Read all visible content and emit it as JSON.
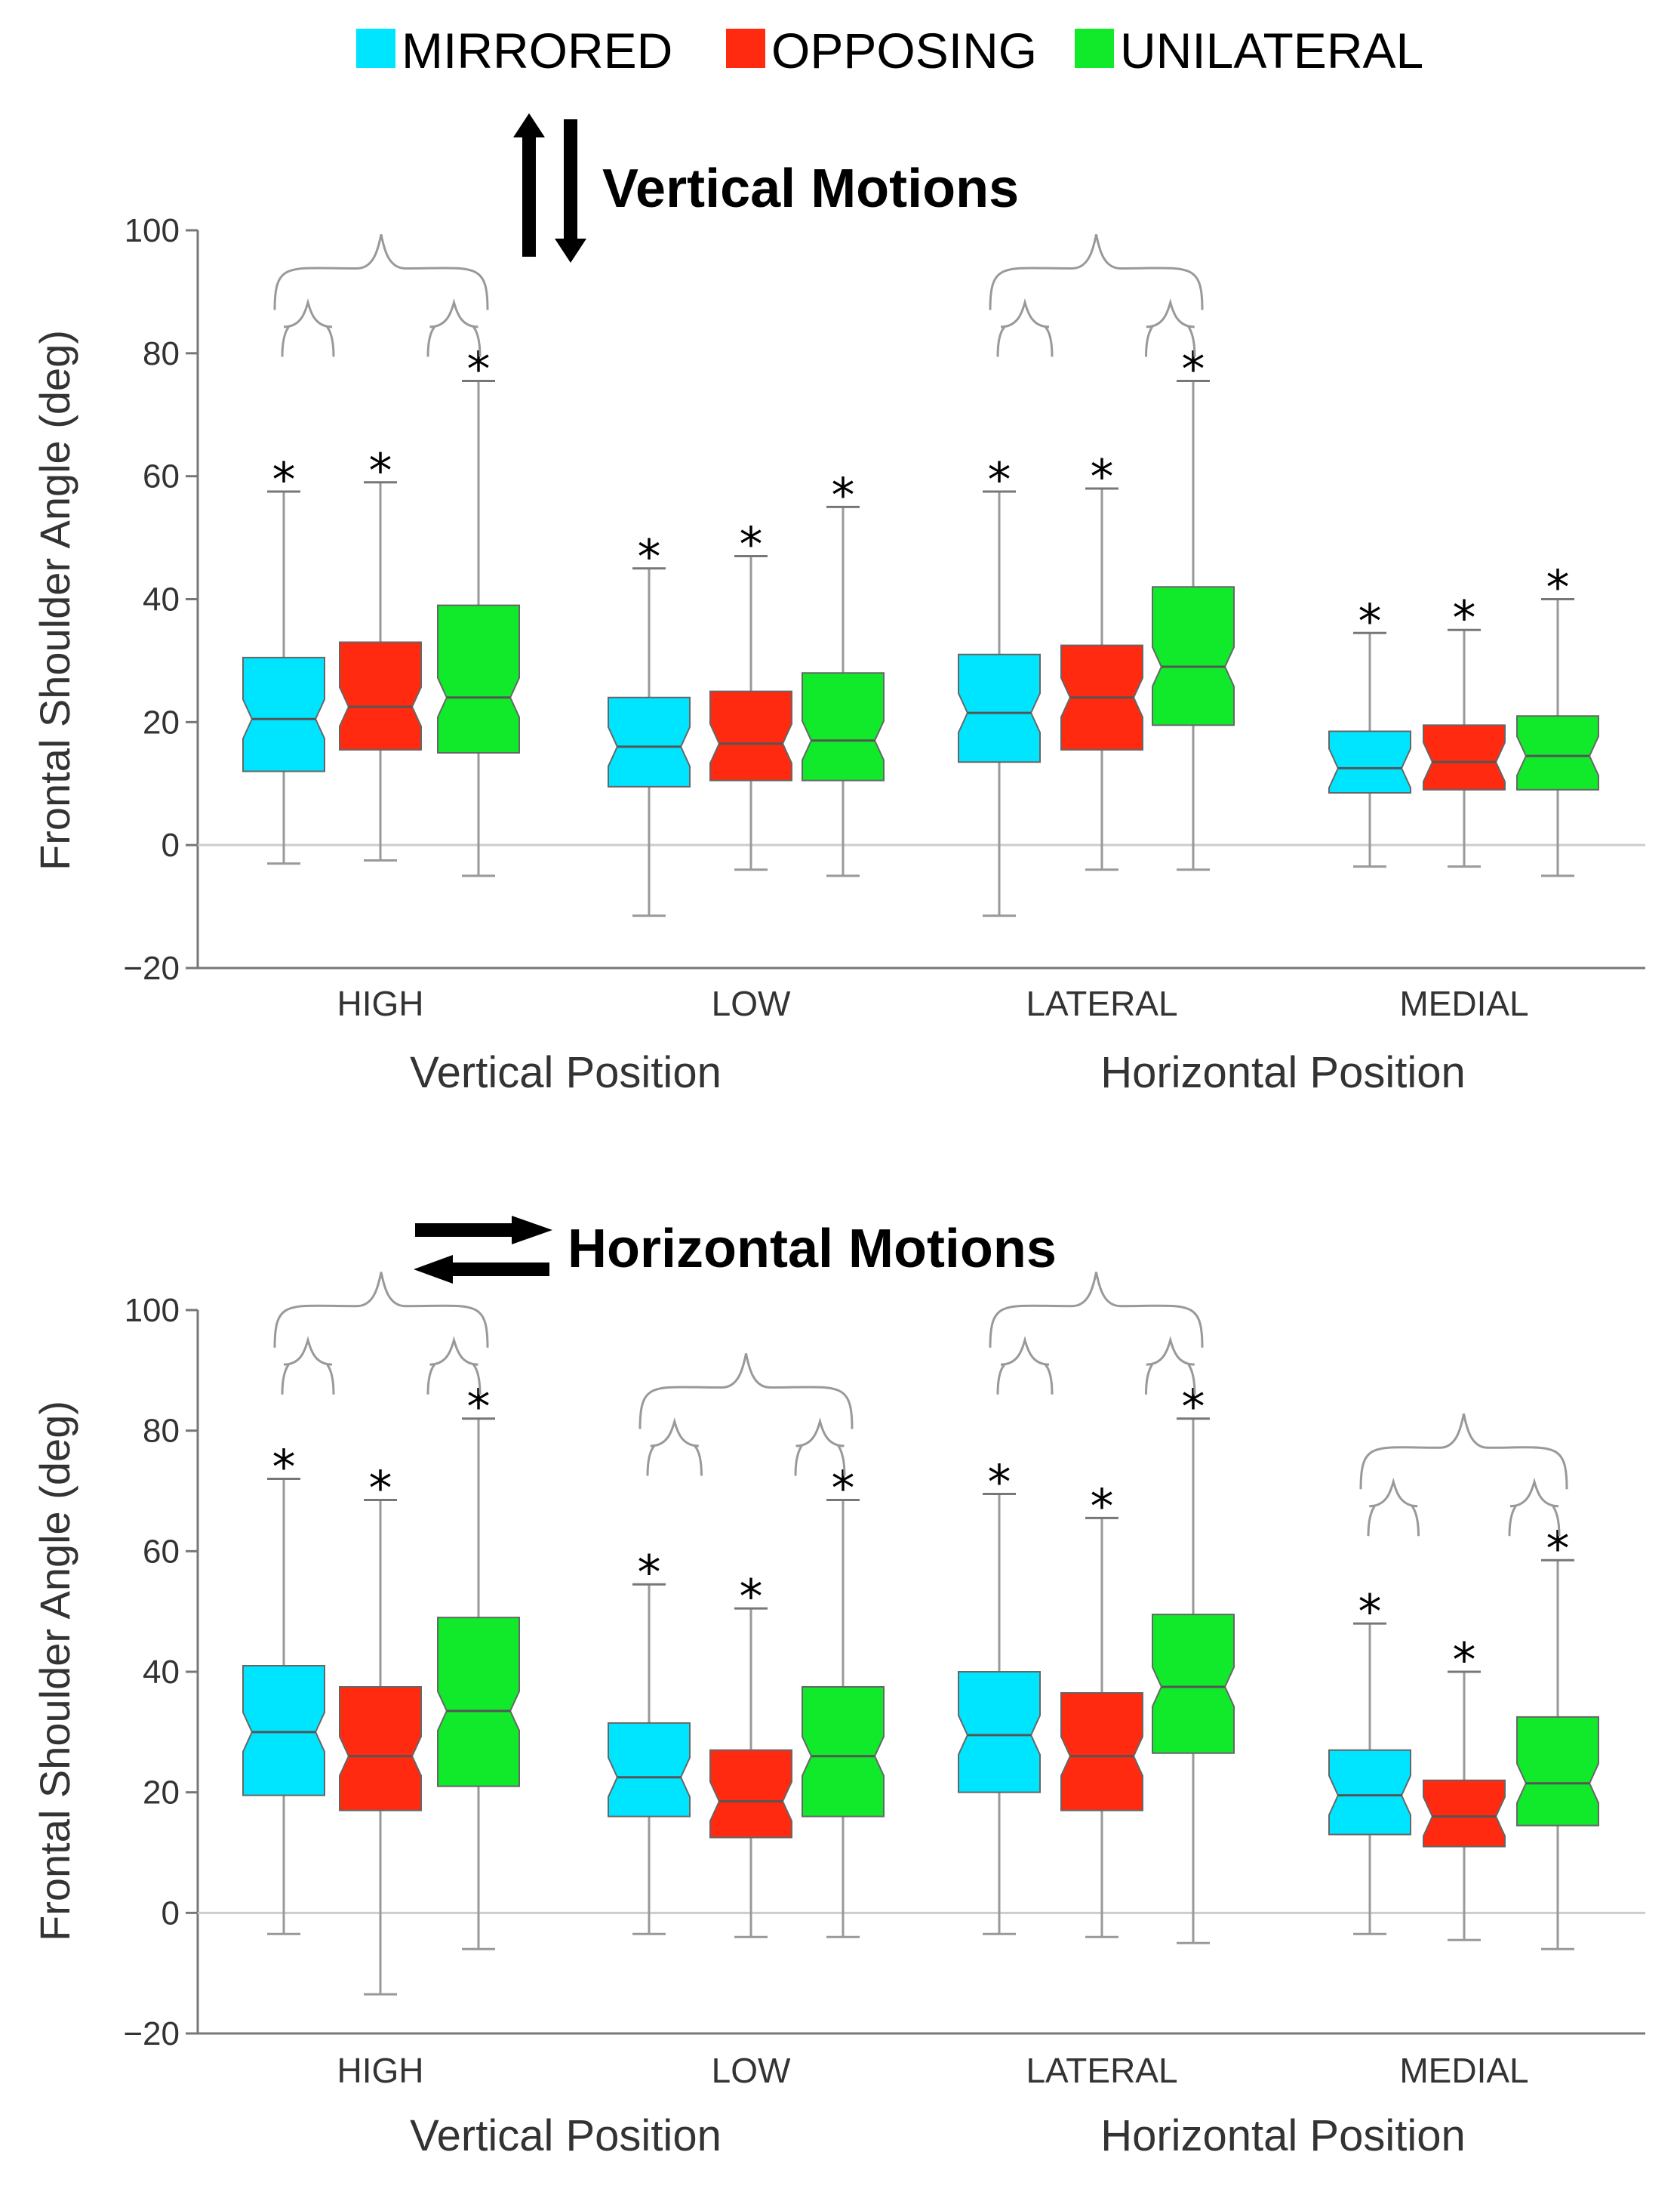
{
  "legend": [
    {
      "label": "MIRRORED",
      "color": "#00e5ff"
    },
    {
      "label": "OPPOSING",
      "color": "#ff2a10"
    },
    {
      "label": "UNILATERAL",
      "color": "#10ea2a"
    }
  ],
  "chart_data": [
    {
      "type": "boxplot",
      "title": "Vertical Motions",
      "ylabel": "Frontal Shoulder Angle (deg)",
      "ylim": [
        -20,
        100
      ],
      "yticks": [
        "100",
        "80",
        "60",
        "40",
        "20",
        "0",
        "−20"
      ],
      "categories": [
        "HIGH",
        "LOW",
        "LATERAL",
        "MEDIAL"
      ],
      "groups": [
        "Vertical Position",
        "Horizontal Position"
      ],
      "star_label": "*",
      "series": [
        {
          "name": "MIRRORED",
          "boxes": [
            {
              "min": -3,
              "q1": 12,
              "median": 20.5,
              "q3": 30.5,
              "max": 57.5
            },
            {
              "min": -11.5,
              "q1": 9.5,
              "median": 16,
              "q3": 24,
              "max": 45
            },
            {
              "min": -11.5,
              "q1": 13.5,
              "median": 21.5,
              "q3": 31,
              "max": 57.5
            },
            {
              "min": -3.5,
              "q1": 8.5,
              "median": 12.5,
              "q3": 18.5,
              "max": 34.5
            }
          ]
        },
        {
          "name": "OPPOSING",
          "boxes": [
            {
              "min": -2.5,
              "q1": 15.5,
              "median": 22.5,
              "q3": 33,
              "max": 59
            },
            {
              "min": -4,
              "q1": 10.5,
              "median": 16.5,
              "q3": 25,
              "max": 47
            },
            {
              "min": -4,
              "q1": 15.5,
              "median": 24,
              "q3": 32.5,
              "max": 58
            },
            {
              "min": -3.5,
              "q1": 9,
              "median": 13.5,
              "q3": 19.5,
              "max": 35
            }
          ]
        },
        {
          "name": "UNILATERAL",
          "boxes": [
            {
              "min": -5,
              "q1": 15,
              "median": 24,
              "q3": 39,
              "max": 75.5
            },
            {
              "min": -5,
              "q1": 10.5,
              "median": 17,
              "q3": 28,
              "max": 55
            },
            {
              "min": -4,
              "q1": 19.5,
              "median": 29,
              "q3": 42,
              "max": 75.5
            },
            {
              "min": -5,
              "q1": 9,
              "median": 14.5,
              "q3": 21,
              "max": 40
            }
          ]
        }
      ],
      "brackets": [
        0,
        2
      ]
    },
    {
      "type": "boxplot",
      "title": "Horizontal Motions",
      "ylabel": "Frontal Shoulder Angle (deg)",
      "ylim": [
        -20,
        100
      ],
      "yticks": [
        "100",
        "80",
        "60",
        "40",
        "20",
        "0",
        "−20"
      ],
      "categories": [
        "HIGH",
        "LOW",
        "LATERAL",
        "MEDIAL"
      ],
      "groups": [
        "Vertical Position",
        "Horizontal Position"
      ],
      "star_label": "*",
      "series": [
        {
          "name": "MIRRORED",
          "boxes": [
            {
              "min": -3.5,
              "q1": 19.5,
              "median": 30,
              "q3": 41,
              "max": 72
            },
            {
              "min": -3.5,
              "q1": 16,
              "median": 22.5,
              "q3": 31.5,
              "max": 54.5
            },
            {
              "min": -3.5,
              "q1": 20,
              "median": 29.5,
              "q3": 40,
              "max": 69.5
            },
            {
              "min": -3.5,
              "q1": 13,
              "median": 19.5,
              "q3": 27,
              "max": 48
            }
          ]
        },
        {
          "name": "OPPOSING",
          "boxes": [
            {
              "min": -13.5,
              "q1": 17,
              "median": 26,
              "q3": 37.5,
              "max": 68.5
            },
            {
              "min": -4,
              "q1": 12.5,
              "median": 18.5,
              "q3": 27,
              "max": 50.5
            },
            {
              "min": -4,
              "q1": 17,
              "median": 26,
              "q3": 36.5,
              "max": 65.5
            },
            {
              "min": -4.5,
              "q1": 11,
              "median": 16,
              "q3": 22,
              "max": 40
            }
          ]
        },
        {
          "name": "UNILATERAL",
          "boxes": [
            {
              "min": -6,
              "q1": 21,
              "median": 33.5,
              "q3": 49,
              "max": 82
            },
            {
              "min": -4,
              "q1": 16,
              "median": 26,
              "q3": 37.5,
              "max": 68.5
            },
            {
              "min": -5,
              "q1": 26.5,
              "median": 37.5,
              "q3": 49.5,
              "max": 82
            },
            {
              "min": -6,
              "q1": 14.5,
              "median": 21.5,
              "q3": 32.5,
              "max": 58.5
            }
          ]
        }
      ],
      "brackets": [
        0,
        1,
        2,
        3
      ]
    }
  ]
}
